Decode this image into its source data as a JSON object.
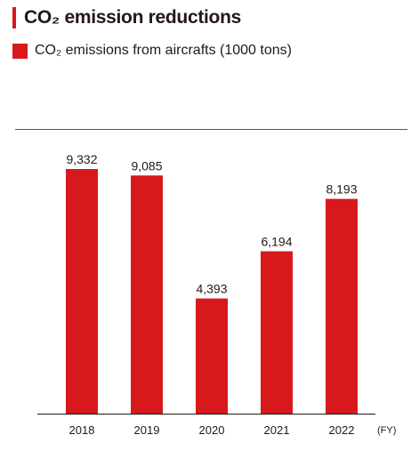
{
  "title": "CO₂ emission reductions",
  "accent_color": "#d7191c",
  "chart_data": {
    "type": "bar",
    "categories": [
      "2018",
      "2019",
      "2020",
      "2021",
      "2022"
    ],
    "series": [
      {
        "name": "CO₂ emissions from aircrafts (1000 tons)",
        "values": [
          9332,
          9085,
          4393,
          6194,
          8193
        ],
        "labels": [
          "9,332",
          "9,085",
          "4,393",
          "6,194",
          "8,193"
        ],
        "color": "#d7191c"
      }
    ],
    "xlabel": "(FY)",
    "ylabel": "",
    "ylim": [
      0,
      9332
    ],
    "grid": false,
    "legend_position": "top-left"
  }
}
